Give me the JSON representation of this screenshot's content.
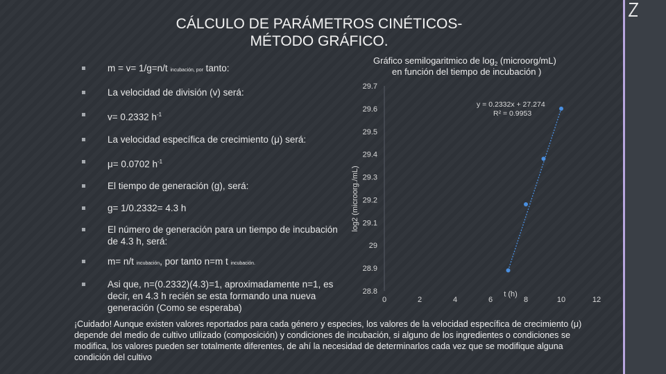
{
  "slide": {
    "title_line1": "CÁLCULO DE PARÁMETROS CINÉTICOS-",
    "title_line2": "MÉTODO GRÁFICO.",
    "bullets": {
      "b1_main": "m = v= 1/g=n/t ",
      "b1_sub": "incubación, por",
      "b1_tail": " tanto:",
      "b2": "La velocidad de división (v) será:",
      "b3_main": "v= 0.2332 h",
      "b3_sup": "-1",
      "b4": "La velocidad específica de crecimiento (μ) será:",
      "b5_main": "μ= 0.0702 h",
      "b5_sup": "-1",
      "b6": "El tiempo de generación (g), será:",
      "b7": "g= 1/0.2332= 4.3 h",
      "b8": "El número de generación para un tiempo de incubación de 4.3 h, será:",
      "b9_a": "m= n/t ",
      "b9_sub1": "incubación",
      "b9_b": ", por tanto n=m t ",
      "b9_sub2": "incubación",
      "b9_c": ".",
      "b10": "Asi que, n=(0.2332)(4.3)=1, aproximadamente n=1, es decir, en 4.3  h recién se esta formando una nueva generación (Como se esperaba)"
    },
    "warning": "¡Cuidado! Aunque existen valores reportados para cada género y especies, los valores de la velocidad específica de crecimiento (μ) depende del medio de cultivo utilizado (composición) y condiciones de incubación, si alguno de los ingredientes o condiciones se modifica, los valores pueden ser totalmente diferentes, de ahí la necesidad de determinarlos cada vez que se modifique alguna condición del cultivo"
  },
  "chart_data": {
    "type": "scatter",
    "title_line1": "Gráfico semilogaritmico de log",
    "title_sub": "2",
    "title_line1_tail": " (microorg/mL)",
    "title_line2": "en función del tiempo de incubación )",
    "xlabel": "t (h)",
    "ylabel": "log2 (microorg./mL)",
    "xlim": [
      0,
      12
    ],
    "ylim": [
      28.8,
      29.7
    ],
    "xticks": [
      "0",
      "2",
      "4",
      "6",
      "8",
      "10",
      "12"
    ],
    "yticks": [
      "28.8",
      "28.9",
      "29",
      "29.1",
      "29.2",
      "29.3",
      "29.4",
      "29.5",
      "29.6",
      "29.7"
    ],
    "x": [
      7,
      8,
      9,
      10
    ],
    "y": [
      28.89,
      29.18,
      29.38,
      29.6
    ],
    "trendline": {
      "slope": 0.2332,
      "intercept": 27.274,
      "x_range": [
        7,
        10
      ]
    },
    "equation": "y = 0.2332x + 27.274",
    "r2": "R² = 0.9953",
    "point_color": "#4a8fe0",
    "line_color": "#4a8fe0"
  }
}
